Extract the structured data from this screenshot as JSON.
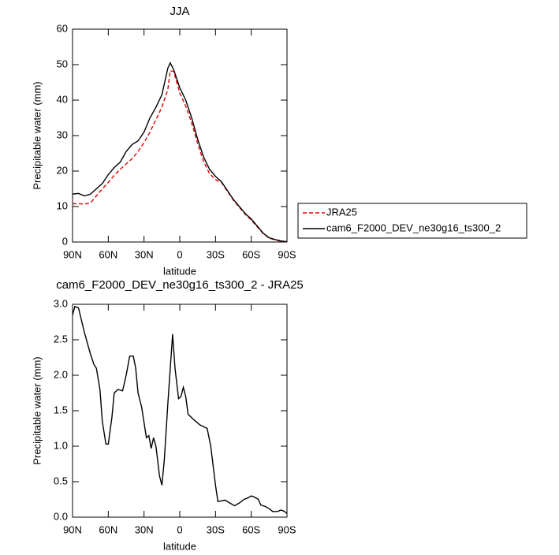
{
  "chart_data": [
    {
      "type": "line",
      "title": "JJA",
      "xlabel": "latitude",
      "ylabel": "Precipitable water (mm)",
      "x": [
        90,
        85,
        80,
        75,
        70,
        65,
        60,
        55,
        50,
        45,
        40,
        35,
        30,
        25,
        20,
        15,
        10,
        8,
        5,
        0,
        -5,
        -10,
        -15,
        -20,
        -25,
        -30,
        -35,
        -40,
        -45,
        -50,
        -55,
        -60,
        -65,
        -70,
        -75,
        -80,
        -85,
        -90
      ],
      "series": [
        {
          "name": "JRA25",
          "color": "#e00000",
          "line_style": "dashed",
          "values": [
            10.8,
            10.8,
            10.7,
            11,
            13,
            15,
            16.8,
            18.8,
            20.5,
            22,
            23.5,
            25.5,
            28,
            31,
            34.5,
            38,
            43,
            48.3,
            48,
            42,
            38.3,
            33.6,
            27.7,
            22.7,
            19.3,
            17.6,
            16.8,
            14.3,
            11.8,
            9.8,
            7.8,
            6.2,
            4.3,
            2.4,
            1.1,
            0.6,
            0.2,
            0.05
          ]
        },
        {
          "name": "cam6_F2000_DEV_ne30g16_ts300_2",
          "color": "#000000",
          "line_style": "solid",
          "values": [
            13.5,
            13.7,
            13,
            13.5,
            15,
            16.5,
            19,
            21,
            22.5,
            25.5,
            27.5,
            28.5,
            31,
            35,
            38,
            41.5,
            49,
            50.5,
            48.5,
            43.5,
            40,
            35,
            29,
            24,
            20.5,
            18.5,
            17,
            14.5,
            12,
            10,
            8,
            6.5,
            4.5,
            2.5,
            1.2,
            0.7,
            0.3,
            0.1
          ]
        }
      ],
      "xlim": [
        90,
        -90
      ],
      "xticks": [
        {
          "value": 90,
          "label": "90N"
        },
        {
          "value": 60,
          "label": "60N"
        },
        {
          "value": 30,
          "label": "30N"
        },
        0,
        {
          "value": -30,
          "label": "30S"
        },
        {
          "value": -60,
          "label": "60S"
        },
        {
          "value": -90,
          "label": "90S"
        }
      ],
      "ylim": [
        0,
        60
      ],
      "yticks": [
        0,
        10,
        20,
        30,
        40,
        50,
        60
      ],
      "legend": "right"
    },
    {
      "type": "line",
      "title": "cam6_F2000_DEV_ne30g16_ts300_2 - JRA25",
      "xlabel": "latitude",
      "ylabel": "Precipitable water (mm)",
      "x": [
        90,
        88,
        85,
        80,
        75,
        72,
        70,
        67,
        65,
        62,
        60,
        57,
        55,
        52,
        48,
        45,
        42,
        39,
        37,
        35,
        32,
        28,
        26,
        24,
        22,
        20,
        17,
        15,
        13,
        10,
        6,
        4,
        1,
        -1,
        -3,
        -5,
        -7,
        -12,
        -17,
        -23,
        -26,
        -30,
        -32,
        -35,
        -38,
        -42,
        -46,
        -50,
        -54,
        -57,
        -60,
        -63,
        -66,
        -68,
        -72,
        -75,
        -78,
        -82,
        -85,
        -88,
        -90
      ],
      "series": [
        {
          "name": "cam6_F2000_DEV_ne30g16_ts300_2 - JRA25",
          "color": "#000000",
          "line_style": "solid",
          "values": [
            2.85,
            2.97,
            2.95,
            2.6,
            2.3,
            2.15,
            2.1,
            1.8,
            1.35,
            1.03,
            1.03,
            1.4,
            1.75,
            1.8,
            1.78,
            2.0,
            2.27,
            2.27,
            2.1,
            1.75,
            1.55,
            1.12,
            1.15,
            0.97,
            1.12,
            1.0,
            0.58,
            0.45,
            0.8,
            1.6,
            2.58,
            2.1,
            1.67,
            1.7,
            1.83,
            1.7,
            1.45,
            1.37,
            1.3,
            1.25,
            1.0,
            0.45,
            0.22,
            0.23,
            0.24,
            0.2,
            0.16,
            0.2,
            0.25,
            0.27,
            0.3,
            0.28,
            0.25,
            0.17,
            0.15,
            0.12,
            0.08,
            0.08,
            0.1,
            0.08,
            0.05
          ]
        }
      ],
      "xlim": [
        90,
        -90
      ],
      "xticks": [
        {
          "value": 90,
          "label": "90N"
        },
        {
          "value": 60,
          "label": "60N"
        },
        {
          "value": 30,
          "label": "30N"
        },
        0,
        {
          "value": -30,
          "label": "30S"
        },
        {
          "value": -60,
          "label": "60S"
        },
        {
          "value": -90,
          "label": "90S"
        }
      ],
      "ylim": [
        0,
        3
      ],
      "yticks": [
        {
          "value": 0,
          "label": "0.0"
        },
        0.5,
        {
          "value": 1,
          "label": "1.0"
        },
        1.5,
        {
          "value": 2,
          "label": "2.0"
        },
        2.5,
        {
          "value": 3,
          "label": "3.0"
        }
      ]
    }
  ]
}
